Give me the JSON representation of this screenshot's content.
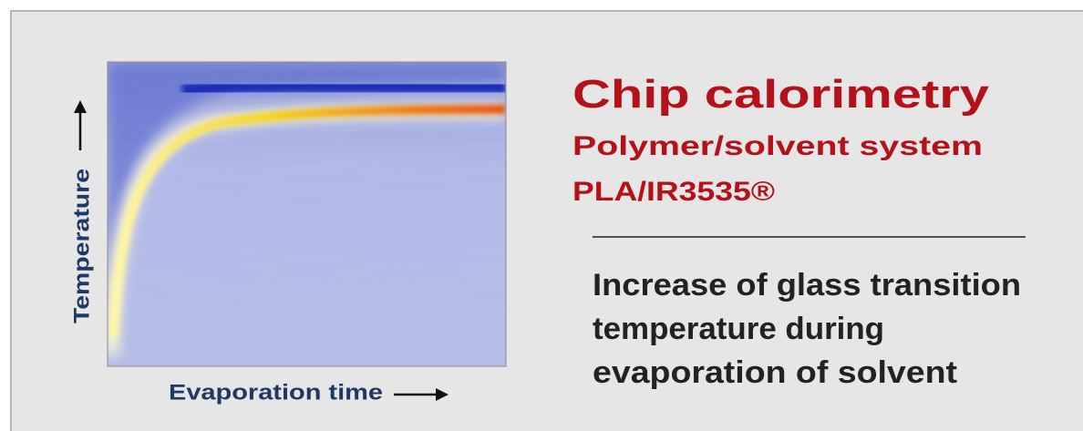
{
  "figure": {
    "y_axis_label": "Temperature",
    "x_axis_label": "Evaporation time"
  },
  "text": {
    "title": "Chip calorimetry",
    "subtitle_lines": [
      "Polymer/solvent system",
      "PLA/IR3535®"
    ],
    "body_lines": [
      "Increase of glass transition",
      "temperature during",
      "evaporation of solvent"
    ]
  }
}
